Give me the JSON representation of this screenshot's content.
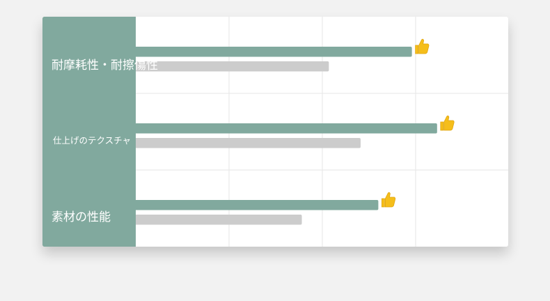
{
  "chart_data": {
    "type": "bar",
    "orientation": "horizontal",
    "categories": [
      "耐摩耗性・耐擦傷性",
      "仕上げのテクスチャ",
      "素材の性能"
    ],
    "series": [
      {
        "values": [
          2.96,
          3.23,
          2.6
        ],
        "color": "#81a99e",
        "icon": "thumbs-up-icon"
      },
      {
        "values": [
          2.07,
          2.41,
          1.78
        ],
        "color": "#cccccc"
      }
    ],
    "xlim": [
      0,
      4
    ],
    "grid": true,
    "xlabel": "",
    "ylabel": ""
  }
}
